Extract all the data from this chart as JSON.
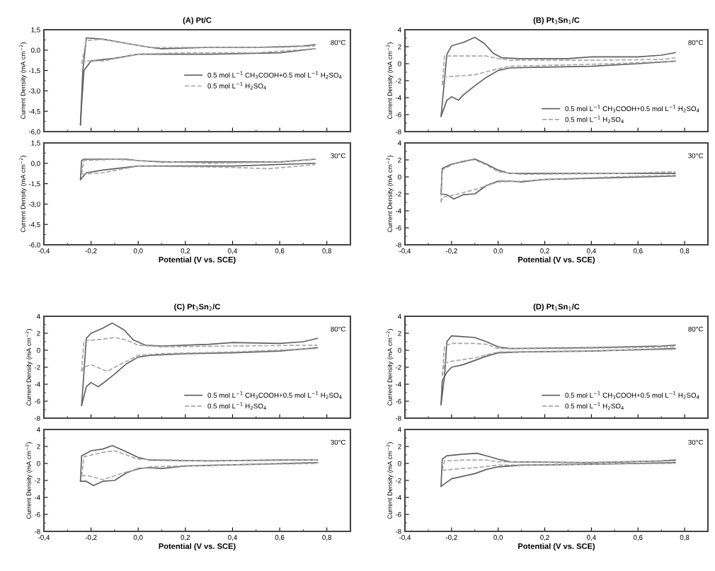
{
  "chart_data": [
    {
      "type": "line",
      "title": "(A) Pt/C",
      "ylabel": "Current Density (mA cm$^{−2}$)",
      "xlim": [
        -0.4,
        0.9
      ],
      "ylim": [
        -6.0,
        1.5
      ],
      "tick_labels": "y",
      "legend": "center right",
      "annotations": [
        "80°C"
      ],
      "xticks": [
        {
          "value": -0.4,
          "label": null
        },
        {
          "value": -0.2,
          "label": null
        },
        {
          "value": 0.0,
          "label": null
        },
        {
          "value": 0.2,
          "label": null
        },
        {
          "value": 0.4,
          "label": null
        },
        {
          "value": 0.6,
          "label": null
        },
        {
          "value": 0.8,
          "label": null
        }
      ],
      "yticks": [
        {
          "value": 1.5,
          "label": "1,5"
        },
        {
          "value": 0.0,
          "label": "0,0"
        },
        {
          "value": -1.5,
          "label": "-1,5"
        },
        {
          "value": -3.0,
          "label": "-3,0"
        },
        {
          "value": -4.5,
          "label": "-4,5"
        },
        {
          "value": -6.0,
          "label": "-6,0"
        }
      ],
      "series": [
        {
          "name": "0.5 mol L$^{−1}$ CH$_{3}$COOH+0.5 mol L$^{−1}$ H$_{2}$SO$_{4}$",
          "color": "#606060",
          "line_style": "solid",
          "x": [
            -0.245,
            -0.235,
            -0.22,
            -0.15,
            -0.05,
            0.05,
            0.1,
            0.3,
            0.5,
            0.7,
            0.75
          ],
          "values": [
            -5.5,
            -1.5,
            0.9,
            0.8,
            0.5,
            0.2,
            0.1,
            0.2,
            0.2,
            0.3,
            0.4
          ]
        },
        {
          "color": "#606060",
          "line_style": "solid",
          "x": [
            -0.245,
            -0.24,
            -0.23,
            -0.2,
            -0.1,
            0.0,
            0.3,
            0.6,
            0.75
          ],
          "values": [
            -5.5,
            -4.0,
            -1.5,
            -0.8,
            -0.6,
            -0.3,
            -0.3,
            -0.2,
            0.1
          ]
        },
        {
          "name": "0.5 mol L$^{−1}$ H$_{2}$SO$_{4}$",
          "color": "#a8a8a8",
          "line_style": "dashed",
          "x": [
            -0.24,
            -0.22,
            -0.15,
            -0.05,
            0.05,
            0.3,
            0.6,
            0.75
          ],
          "values": [
            -1.0,
            0.7,
            0.8,
            0.5,
            0.2,
            0.2,
            0.2,
            0.3
          ]
        },
        {
          "color": "#a8a8a8",
          "line_style": "dashed",
          "x": [
            -0.24,
            -0.22,
            -0.15,
            0.0,
            0.2,
            0.5,
            0.75
          ],
          "values": [
            -1.0,
            -0.8,
            -0.8,
            -0.3,
            -0.2,
            -0.2,
            0.1
          ]
        }
      ]
    },
    {
      "type": "line",
      "title": "(B) Pt$_{3}$Sn$_{1}$/C",
      "ylabel": "Current Density (mA cm$^{−2}$)",
      "xlim": [
        -0.4,
        0.9
      ],
      "ylim": [
        -8,
        4
      ],
      "tick_labels": "y",
      "legend": "lower right",
      "annotations": [
        "80°C"
      ],
      "xticks": [
        {
          "value": -0.4,
          "label": null
        },
        {
          "value": -0.2,
          "label": null
        },
        {
          "value": 0.0,
          "label": null
        },
        {
          "value": 0.2,
          "label": null
        },
        {
          "value": 0.4,
          "label": null
        },
        {
          "value": 0.6,
          "label": null
        },
        {
          "value": 0.8,
          "label": null
        }
      ],
      "yticks": [
        4,
        2,
        0,
        -2,
        -4,
        -6,
        -8
      ],
      "series": [
        {
          "name": "0.5 mol L$^{−1}$ CH$_{3}$COOH+0.5 mol L$^{−1}$ H$_{2}$SO$_{4}$",
          "color": "#606060",
          "line_style": "solid",
          "x": [
            -0.245,
            -0.22,
            -0.2,
            -0.15,
            -0.1,
            -0.06,
            -0.02,
            0.015,
            0.09,
            0.3,
            0.4,
            0.6,
            0.7,
            0.76
          ],
          "values": [
            -6.2,
            1.1,
            2.1,
            2.5,
            3.1,
            2.4,
            1.2,
            0.7,
            0.6,
            0.6,
            0.8,
            0.8,
            1.0,
            1.3
          ]
        },
        {
          "color": "#606060",
          "line_style": "solid",
          "x": [
            -0.245,
            -0.22,
            -0.2,
            -0.17,
            -0.15,
            -0.1,
            -0.05,
            0.0,
            0.05,
            0.2,
            0.4,
            0.6,
            0.76
          ],
          "values": [
            -6.2,
            -4.3,
            -3.9,
            -4.3,
            -3.7,
            -2.6,
            -1.6,
            -0.8,
            -0.5,
            -0.4,
            -0.3,
            0.0,
            0.3
          ]
        },
        {
          "name": "0.5 mol L$^{−1}$ H$_{2}$SO$_{4}$",
          "color": "#a8a8a8",
          "line_style": "dashed",
          "x": [
            -0.24,
            -0.23,
            -0.15,
            -0.05,
            0.0,
            0.05,
            0.4,
            0.7,
            0.76
          ],
          "values": [
            -2.5,
            0.9,
            0.9,
            0.9,
            0.6,
            0.4,
            0.4,
            0.5,
            0.7
          ]
        },
        {
          "color": "#a8a8a8",
          "line_style": "dashed",
          "x": [
            -0.24,
            -0.23,
            -0.2,
            -0.1,
            0.0,
            0.05,
            0.2,
            0.5,
            0.76
          ],
          "values": [
            -2.5,
            -1.6,
            -1.5,
            -1.3,
            -0.6,
            -0.3,
            -0.2,
            0.0,
            0.3
          ]
        }
      ]
    },
    {
      "type": "line",
      "ylabel": "Current Density (mA cm$^{−2}$)",
      "xlabel": "Potential (V vs. SCE)",
      "xlim": [
        -0.4,
        0.9
      ],
      "ylim": [
        -6.0,
        1.5
      ],
      "annotations": [
        "30°C"
      ],
      "xticks": [
        {
          "value": -0.4,
          "label": "-0,4"
        },
        {
          "value": -0.2,
          "label": "-0,2"
        },
        {
          "value": 0.0,
          "label": "0,0"
        },
        {
          "value": 0.2,
          "label": "0,2"
        },
        {
          "value": 0.4,
          "label": "0,4"
        },
        {
          "value": 0.6,
          "label": "0,6"
        },
        {
          "value": 0.8,
          "label": "0,8"
        }
      ],
      "yticks": [
        {
          "value": 1.5,
          "label": "1,5"
        },
        {
          "value": 0.0,
          "label": "0,0"
        },
        {
          "value": -1.5,
          "label": "-1,5"
        },
        {
          "value": -3.0,
          "label": "-3,0"
        },
        {
          "value": -4.5,
          "label": "-4,5"
        },
        {
          "value": -6.0,
          "label": "-6,0"
        }
      ],
      "series": [
        {
          "color": "#606060",
          "line_style": "solid",
          "x": [
            -0.245,
            -0.24,
            -0.23,
            -0.15,
            -0.05,
            0.0,
            0.1,
            0.3,
            0.6,
            0.75
          ],
          "values": [
            -1.2,
            0.2,
            0.3,
            0.3,
            0.3,
            0.2,
            0.1,
            0.1,
            0.1,
            0.3
          ]
        },
        {
          "color": "#606060",
          "line_style": "solid",
          "x": [
            -0.245,
            -0.22,
            -0.15,
            0.0,
            0.4,
            0.75
          ],
          "values": [
            -1.2,
            -0.7,
            -0.5,
            -0.2,
            -0.2,
            0.0
          ]
        },
        {
          "color": "#a8a8a8",
          "line_style": "dashed",
          "x": [
            -0.24,
            -0.23,
            -0.1,
            0.0,
            0.3,
            0.6,
            0.75
          ],
          "values": [
            -0.8,
            0.2,
            0.3,
            0.2,
            0.0,
            0.1,
            0.3
          ]
        },
        {
          "color": "#a8a8a8",
          "line_style": "dashed",
          "x": [
            -0.24,
            -0.15,
            0.0,
            0.4,
            0.55,
            0.75
          ],
          "values": [
            -0.8,
            -0.7,
            -0.2,
            -0.3,
            -0.4,
            -0.1
          ]
        }
      ]
    },
    {
      "type": "line",
      "ylabel": "Current Density (mA cm$^{−2}$)",
      "xlabel": "Potential (V vs. SCE)",
      "xlim": [
        -0.4,
        0.9
      ],
      "ylim": [
        -8,
        4
      ],
      "annotations": [
        "30°C"
      ],
      "xticks": [
        {
          "value": -0.4,
          "label": "-0,4"
        },
        {
          "value": -0.2,
          "label": "-0,2"
        },
        {
          "value": 0.0,
          "label": "0,0"
        },
        {
          "value": 0.2,
          "label": "0,2"
        },
        {
          "value": 0.4,
          "label": "0,4"
        },
        {
          "value": 0.6,
          "label": "0,6"
        },
        {
          "value": 0.8,
          "label": "0,8"
        }
      ],
      "yticks": [
        4,
        2,
        0,
        -2,
        -4,
        -6,
        -8
      ],
      "series": [
        {
          "color": "#606060",
          "line_style": "solid",
          "x": [
            -0.245,
            -0.24,
            -0.2,
            -0.15,
            -0.1,
            -0.05,
            0.0,
            0.05,
            0.2,
            0.5,
            0.76
          ],
          "values": [
            -2.0,
            1.0,
            1.5,
            1.8,
            2.1,
            1.5,
            0.8,
            0.4,
            0.4,
            0.4,
            0.4
          ]
        },
        {
          "color": "#606060",
          "line_style": "solid",
          "x": [
            -0.245,
            -0.22,
            -0.19,
            -0.15,
            -0.1,
            -0.05,
            0.0,
            0.05,
            0.1,
            0.2,
            0.5,
            0.76
          ],
          "values": [
            -2.0,
            -2.1,
            -2.6,
            -2.1,
            -2.0,
            -1.0,
            -0.5,
            -0.5,
            -0.6,
            -0.3,
            -0.1,
            0.1
          ]
        },
        {
          "color": "#a8a8a8",
          "line_style": "dashed",
          "x": [
            -0.245,
            -0.24,
            -0.2,
            -0.15,
            -0.1,
            -0.05,
            0.0,
            0.1,
            0.5,
            0.76
          ],
          "values": [
            -3.0,
            0.8,
            1.4,
            1.9,
            2.0,
            1.4,
            0.6,
            0.3,
            0.4,
            0.6
          ]
        },
        {
          "color": "#a8a8a8",
          "line_style": "dashed",
          "x": [
            -0.245,
            -0.24,
            -0.2,
            -0.1,
            0.0,
            0.1,
            0.2,
            0.5,
            0.76
          ],
          "values": [
            -3.0,
            -2.4,
            -2.2,
            -1.5,
            -0.6,
            -0.5,
            -0.3,
            0.0,
            0.2
          ]
        }
      ]
    },
    {
      "type": "line",
      "title": "(C) Pt$_{3}$Sn$_{2}$/C",
      "ylabel": "Current Density (mA cm$^{−2}$)",
      "xlim": [
        -0.4,
        0.9
      ],
      "ylim": [
        -8,
        4
      ],
      "tick_labels": "y",
      "legend": "lower right",
      "annotations": [
        "80°C"
      ],
      "xticks": [
        {
          "value": -0.4,
          "label": null
        },
        {
          "value": -0.2,
          "label": null
        },
        {
          "value": 0.0,
          "label": null
        },
        {
          "value": 0.2,
          "label": null
        },
        {
          "value": 0.4,
          "label": null
        },
        {
          "value": 0.6,
          "label": null
        },
        {
          "value": 0.8,
          "label": null
        }
      ],
      "yticks": [
        4,
        2,
        0,
        -2,
        -4,
        -6,
        -8
      ],
      "series": [
        {
          "name": "0.5 mol L$^{−1}$ CH$_{3}$COOH+0.5 mol L$^{−1}$ H$_{2}$SO$_{4}$",
          "color": "#606060",
          "line_style": "solid",
          "x": [
            -0.24,
            -0.22,
            -0.2,
            -0.15,
            -0.11,
            -0.06,
            -0.02,
            0.03,
            0.1,
            0.3,
            0.4,
            0.6,
            0.7,
            0.76
          ],
          "values": [
            -6.5,
            1.4,
            2.0,
            2.6,
            3.2,
            2.4,
            1.2,
            0.6,
            0.5,
            0.7,
            0.9,
            0.8,
            1.0,
            1.4
          ]
        },
        {
          "color": "#606060",
          "line_style": "solid",
          "x": [
            -0.24,
            -0.22,
            -0.2,
            -0.17,
            -0.15,
            -0.1,
            -0.05,
            0.0,
            0.05,
            0.2,
            0.4,
            0.6,
            0.76
          ],
          "values": [
            -6.5,
            -4.3,
            -3.8,
            -4.3,
            -3.9,
            -2.8,
            -1.6,
            -0.8,
            -0.6,
            -0.4,
            -0.3,
            -0.1,
            0.3
          ]
        },
        {
          "name": "0.5 mol L$^{−1}$ H$_{2}$SO$_{4}$",
          "color": "#a8a8a8",
          "line_style": "dashed",
          "x": [
            -0.24,
            -0.23,
            -0.15,
            -0.1,
            -0.05,
            0.0,
            0.1,
            0.4,
            0.76
          ],
          "values": [
            -2.5,
            1.1,
            1.3,
            1.5,
            1.2,
            0.6,
            0.4,
            0.5,
            0.6
          ]
        },
        {
          "color": "#a8a8a8",
          "line_style": "dashed",
          "x": [
            -0.24,
            -0.23,
            -0.2,
            -0.13,
            -0.1,
            0.0,
            0.1,
            0.4,
            0.76
          ],
          "values": [
            -2.5,
            -2.0,
            -1.7,
            -2.5,
            -2.0,
            -0.6,
            -0.4,
            -0.2,
            0.2
          ]
        }
      ]
    },
    {
      "type": "line",
      "title": "(D) Pt$_{1}$Sn$_{1}$/C",
      "ylabel": "Current Density (mA cm$^{−2}$)",
      "xlim": [
        -0.4,
        0.9
      ],
      "ylim": [
        -8,
        4
      ],
      "tick_labels": "y",
      "legend": "lower right",
      "annotations": [
        "80°C"
      ],
      "xticks": [
        {
          "value": -0.4,
          "label": null
        },
        {
          "value": -0.2,
          "label": null
        },
        {
          "value": 0.0,
          "label": null
        },
        {
          "value": 0.2,
          "label": null
        },
        {
          "value": 0.4,
          "label": null
        },
        {
          "value": 0.6,
          "label": null
        },
        {
          "value": 0.8,
          "label": null
        }
      ],
      "yticks": [
        4,
        2,
        0,
        -2,
        -4,
        -6,
        -8
      ],
      "series": [
        {
          "name": "0.5 mol L$^{−1}$ CH$_{3}$COOH+0.5 mol L$^{−1}$ H$_{2}$SO$_{4}$",
          "color": "#606060",
          "line_style": "solid",
          "x": [
            -0.245,
            -0.23,
            -0.22,
            -0.2,
            -0.15,
            -0.1,
            -0.05,
            0.0,
            0.05,
            0.4,
            0.7,
            0.76
          ],
          "values": [
            -6.4,
            -3.0,
            1.0,
            1.7,
            1.6,
            1.5,
            1.0,
            0.4,
            0.2,
            0.3,
            0.5,
            0.6
          ]
        },
        {
          "color": "#606060",
          "line_style": "solid",
          "x": [
            -0.245,
            -0.24,
            -0.22,
            -0.2,
            -0.15,
            -0.1,
            -0.05,
            0.0,
            0.1,
            0.4,
            0.76
          ],
          "values": [
            -6.4,
            -3.6,
            -2.6,
            -2.0,
            -1.7,
            -1.2,
            -0.7,
            -0.3,
            -0.2,
            -0.1,
            0.2
          ]
        },
        {
          "name": "0.5 mol L$^{−1}$ H$_{2}$SO$_{4}$",
          "color": "#a8a8a8",
          "line_style": "dashed",
          "x": [
            -0.24,
            -0.23,
            -0.2,
            -0.1,
            -0.05,
            0.0,
            0.3,
            0.76
          ],
          "values": [
            -3.0,
            0.5,
            0.8,
            0.8,
            0.7,
            0.2,
            0.2,
            0.4
          ]
        },
        {
          "color": "#a8a8a8",
          "line_style": "dashed",
          "x": [
            -0.24,
            -0.23,
            -0.2,
            -0.1,
            0.0,
            0.3,
            0.76
          ],
          "values": [
            -3.0,
            -1.5,
            -1.3,
            -0.9,
            -0.2,
            -0.1,
            0.1
          ]
        }
      ]
    },
    {
      "type": "line",
      "ylabel": "Current Density (mA cm$^{−2}$)",
      "xlabel": "Potential (V vs. SCE)",
      "xlim": [
        -0.4,
        0.9
      ],
      "ylim": [
        -8,
        4
      ],
      "annotations": [
        "30°C"
      ],
      "xticks": [
        {
          "value": -0.4,
          "label": "-0,4"
        },
        {
          "value": -0.2,
          "label": "-0,2"
        },
        {
          "value": 0.0,
          "label": "0,0"
        },
        {
          "value": 0.2,
          "label": "0,2"
        },
        {
          "value": 0.4,
          "label": "0,4"
        },
        {
          "value": 0.6,
          "label": "0,6"
        },
        {
          "value": 0.8,
          "label": "0,8"
        }
      ],
      "yticks": [
        4,
        2,
        0,
        -2,
        -4,
        -6,
        -8
      ],
      "series": [
        {
          "color": "#606060",
          "line_style": "solid",
          "x": [
            -0.245,
            -0.24,
            -0.2,
            -0.15,
            -0.11,
            -0.06,
            0.0,
            0.05,
            0.3,
            0.6,
            0.76
          ],
          "values": [
            -2.1,
            0.9,
            1.5,
            1.7,
            2.1,
            1.5,
            0.7,
            0.4,
            0.3,
            0.4,
            0.4
          ]
        },
        {
          "color": "#606060",
          "line_style": "solid",
          "x": [
            -0.245,
            -0.22,
            -0.19,
            -0.15,
            -0.1,
            -0.05,
            0.0,
            0.05,
            0.1,
            0.2,
            0.5,
            0.76
          ],
          "values": [
            -2.1,
            -2.1,
            -2.6,
            -2.1,
            -2.0,
            -1.1,
            -0.6,
            -0.5,
            -0.6,
            -0.3,
            -0.1,
            0.1
          ]
        },
        {
          "color": "#a8a8a8",
          "line_style": "dashed",
          "x": [
            -0.24,
            -0.23,
            -0.15,
            -0.1,
            -0.05,
            0.0,
            0.3,
            0.76
          ],
          "values": [
            -1.5,
            0.8,
            1.3,
            1.5,
            1.0,
            0.5,
            0.3,
            0.4
          ]
        },
        {
          "color": "#a8a8a8",
          "line_style": "dashed",
          "x": [
            -0.24,
            -0.22,
            -0.15,
            -0.05,
            0.05,
            0.3,
            0.76
          ],
          "values": [
            -1.5,
            -1.4,
            -1.9,
            -1.0,
            -0.4,
            -0.2,
            0.0
          ]
        }
      ]
    },
    {
      "type": "line",
      "ylabel": "Current Density (mA cm$^{−2}$)",
      "xlabel": "Potential (V vs. SCE)",
      "xlim": [
        -0.4,
        0.9
      ],
      "ylim": [
        -8,
        4
      ],
      "annotations": [
        "30°C"
      ],
      "xticks": [
        {
          "value": -0.4,
          "label": "-0,4"
        },
        {
          "value": -0.2,
          "label": "-0,2"
        },
        {
          "value": 0.0,
          "label": "0,0"
        },
        {
          "value": 0.2,
          "label": "0,2"
        },
        {
          "value": 0.4,
          "label": "0,4"
        },
        {
          "value": 0.6,
          "label": "0,6"
        },
        {
          "value": 0.8,
          "label": "0,8"
        }
      ],
      "yticks": [
        4,
        2,
        0,
        -2,
        -4,
        -6,
        -8
      ],
      "series": [
        {
          "color": "#606060",
          "line_style": "solid",
          "x": [
            -0.245,
            -0.24,
            -0.22,
            -0.15,
            -0.09,
            -0.05,
            0.0,
            0.05,
            0.4,
            0.7,
            0.76
          ],
          "values": [
            -2.7,
            0.5,
            0.9,
            1.1,
            1.2,
            0.9,
            0.5,
            0.2,
            0.1,
            0.3,
            0.4
          ]
        },
        {
          "color": "#606060",
          "line_style": "solid",
          "x": [
            -0.245,
            -0.2,
            -0.1,
            -0.05,
            0.0,
            0.1,
            0.4,
            0.76
          ],
          "values": [
            -2.7,
            -1.8,
            -1.2,
            -0.7,
            -0.4,
            -0.2,
            -0.1,
            0.1
          ]
        },
        {
          "color": "#a8a8a8",
          "line_style": "dashed",
          "x": [
            -0.24,
            -0.23,
            -0.15,
            -0.05,
            0.0,
            0.3,
            0.76
          ],
          "values": [
            -0.8,
            0.3,
            0.4,
            0.4,
            0.2,
            0.1,
            0.3
          ]
        },
        {
          "color": "#a8a8a8",
          "line_style": "dashed",
          "x": [
            -0.24,
            -0.2,
            -0.1,
            0.0,
            0.3,
            0.76
          ],
          "values": [
            -0.8,
            -0.7,
            -0.5,
            -0.2,
            -0.1,
            0.0
          ]
        }
      ]
    }
  ]
}
